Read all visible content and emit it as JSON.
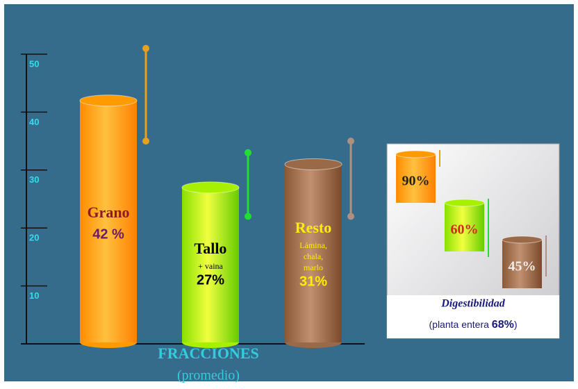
{
  "chart_data": {
    "type": "cylinder-bar",
    "categories": [
      "Grano",
      "Tallo",
      "Resto"
    ],
    "values": [
      42,
      27,
      31
    ],
    "value_labels": [
      "42 %",
      "27%",
      "31%"
    ],
    "sublabels": [
      [],
      [
        "+ vaina"
      ],
      [
        "Lámina,",
        "chala,",
        "marlo"
      ]
    ],
    "low": [
      35,
      22,
      22
    ],
    "high": [
      51,
      33,
      35
    ],
    "colors": [
      "#ff9a00",
      "#a6f000",
      "#9a6a48"
    ],
    "range_colors": [
      "#e8a020",
      "#22dd33",
      "#b09080"
    ],
    "ylim": [
      0,
      50
    ],
    "yticks": [
      10,
      20,
      30,
      40,
      50
    ],
    "xlabel": "FRACCIONES",
    "xsublabel": "(promedio)"
  },
  "inset": {
    "items": [
      "90%",
      "60%",
      "45%"
    ],
    "colors": [
      "#ff9a00",
      "#a6f000",
      "#9a6a48"
    ],
    "title": "Digestibilidad",
    "note_start": "(planta entera",
    "note_value": "68%",
    "note_end": ")"
  }
}
